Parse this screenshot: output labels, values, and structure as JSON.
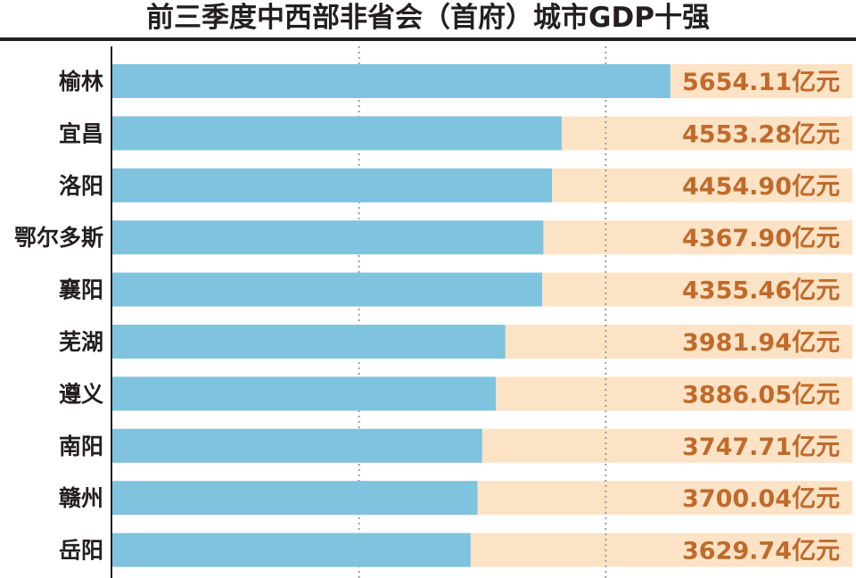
{
  "chart_data": {
    "type": "bar",
    "orientation": "horizontal",
    "title": "前三季度中西部非省会（首府）城市GDP十强",
    "categories": [
      "榆林",
      "宜昌",
      "洛阳",
      "鄂尔多斯",
      "襄阳",
      "芜湖",
      "遵义",
      "南阳",
      "赣州",
      "岳阳"
    ],
    "values": [
      5654.11,
      4553.28,
      4454.9,
      4367.9,
      4355.46,
      3981.94,
      3886.05,
      3747.71,
      3700.04,
      3629.74
    ],
    "value_labels": [
      "5654.11亿元",
      "4553.28亿元",
      "4454.90亿元",
      "4367.90亿元",
      "4355.46亿元",
      "3981.94亿元",
      "3886.05亿元",
      "3747.71亿元",
      "3700.04亿元",
      "3629.74亿元"
    ],
    "xlim": [
      0,
      7500
    ],
    "grid": "vertical dotted",
    "legend": "none",
    "colors": {
      "bar": "#7fc3de",
      "track": "#fce3c5",
      "value_text": "#c06a2b",
      "text": "#231f20",
      "grid": "#9d9d9d"
    }
  }
}
